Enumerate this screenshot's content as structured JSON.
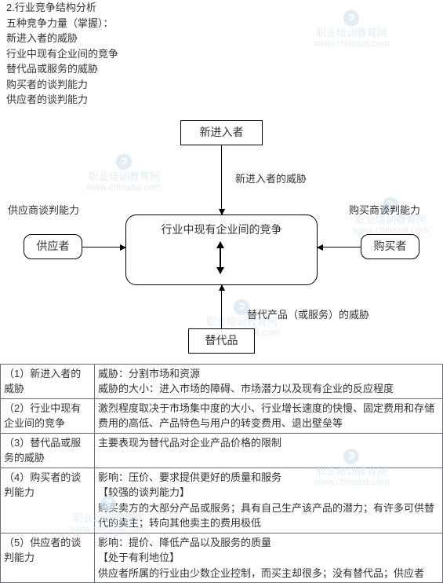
{
  "header": {
    "lines": [
      "2.行业竞争结构分析",
      "五种竞争力量（掌握）：",
      "新进入者的威胁",
      "行业中现有企业间的竞争",
      "替代品或服务的威胁",
      "购买者的谈判能力",
      "供应者的谈判能力"
    ]
  },
  "diagram": {
    "nodes": {
      "top": "新进入者",
      "center": "行业中现有企业间的竞争",
      "left": "供应者",
      "right": "购买者",
      "bottom": "替代品"
    },
    "labels": {
      "top_edge": "新进入者的威胁",
      "left_side": "供应商谈判能力",
      "right_side": "购买商谈判能力",
      "bottom_edge": "替代产品（或服务）的威胁"
    },
    "style": {
      "node_border": "#000000",
      "background": "#ffffff",
      "font_size": 14
    }
  },
  "table": {
    "rows": [
      {
        "c1": "（1）新进入者的威胁",
        "c2": "威胁：分割市场和资源\n威胁的大小：进入市场的障碍、市场潜力以及现有企业的反应程度"
      },
      {
        "c1": "（2）行业中现有企业间的竞争",
        "c2": "激烈程度取决于市场集中度的大小、行业增长速度的快慢、固定费用和存储费用的高低、产品特色与用户的转变费用、退出壁垒等"
      },
      {
        "c1": "（3）替代品或服务的威胁",
        "c2": "主要表现为替代品对企业产品价格的限制"
      },
      {
        "c1": "（4）购买者的谈判能力",
        "c2": "影响：压价、要求提供更好的质量和服务\n【较强的谈判能力】\n购买卖方的大部分产品或服务；具有自己生产该产品的潜力；有许多可供替代的卖主；转向其他卖主的费用极低"
      },
      {
        "c1": "（5）供应者的谈判能力",
        "c2": "影响：提价、降低产品以及服务的质量\n【处于有利地位】\n供应者所属的行业由少数企业控制，而买主却很多；没有替代品；供应者"
      }
    ],
    "style": {
      "border_color": "#6b6b8a",
      "col1_width": 120,
      "font_size": 13
    }
  },
  "watermark": {
    "line1": "职业培训教育网",
    "line2": "www.chinatat.com",
    "color": "#d5e6f2"
  }
}
